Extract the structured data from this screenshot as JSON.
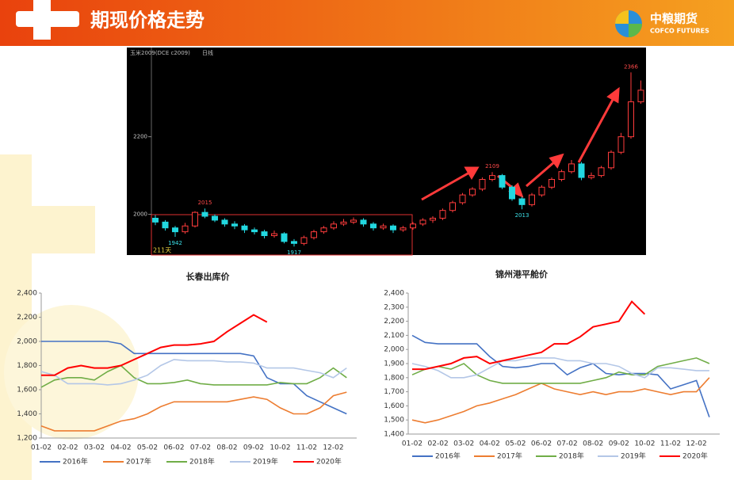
{
  "header": {
    "title": "期现价格走势",
    "logo_cn": "中粮期货",
    "logo_en": "COFCO FUTURES"
  },
  "chart_data": [
    {
      "type": "candlestick",
      "title": "玉米2009(DCE c2009)",
      "subtitle": "日线",
      "annotation": "211天",
      "up_color": "#ff3c3c",
      "down_color": "#22d8e0",
      "ylim": [
        1895,
        2430
      ],
      "yticks": [
        2000,
        2200
      ],
      "high_labels": [
        2015,
        2109,
        2366
      ],
      "low_labels": [
        1942,
        1917,
        2013
      ],
      "candles": [
        [
          1990,
          1998,
          1972,
          1980
        ],
        [
          1980,
          1985,
          1958,
          1965
        ],
        [
          1965,
          1970,
          1942,
          1955
        ],
        [
          1955,
          1978,
          1950,
          1970
        ],
        [
          1970,
          2008,
          1966,
          2005
        ],
        [
          2005,
          2015,
          1990,
          1995
        ],
        [
          1995,
          2000,
          1980,
          1985
        ],
        [
          1985,
          1990,
          1968,
          1975
        ],
        [
          1975,
          1982,
          1962,
          1970
        ],
        [
          1970,
          1975,
          1952,
          1960
        ],
        [
          1960,
          1966,
          1948,
          1955
        ],
        [
          1955,
          1960,
          1938,
          1945
        ],
        [
          1945,
          1958,
          1940,
          1950
        ],
        [
          1950,
          1954,
          1925,
          1930
        ],
        [
          1930,
          1936,
          1917,
          1925
        ],
        [
          1925,
          1945,
          1920,
          1940
        ],
        [
          1940,
          1960,
          1935,
          1955
        ],
        [
          1955,
          1970,
          1950,
          1965
        ],
        [
          1965,
          1982,
          1960,
          1975
        ],
        [
          1975,
          1988,
          1970,
          1980
        ],
        [
          1980,
          1992,
          1975,
          1985
        ],
        [
          1985,
          1990,
          1968,
          1975
        ],
        [
          1975,
          1980,
          1958,
          1965
        ],
        [
          1965,
          1976,
          1960,
          1970
        ],
        [
          1970,
          1974,
          1952,
          1960
        ],
        [
          1960,
          1970,
          1955,
          1965
        ],
        [
          1965,
          1980,
          1960,
          1975
        ],
        [
          1975,
          1990,
          1970,
          1985
        ],
        [
          1985,
          1995,
          1978,
          1990
        ],
        [
          1990,
          2015,
          1985,
          2010
        ],
        [
          2010,
          2035,
          2005,
          2030
        ],
        [
          2030,
          2055,
          2025,
          2050
        ],
        [
          2050,
          2070,
          2045,
          2065
        ],
        [
          2065,
          2095,
          2060,
          2090
        ],
        [
          2090,
          2109,
          2085,
          2100
        ],
        [
          2100,
          2104,
          2065,
          2070
        ],
        [
          2070,
          2075,
          2035,
          2040
        ],
        [
          2040,
          2045,
          2013,
          2025
        ],
        [
          2025,
          2055,
          2020,
          2050
        ],
        [
          2050,
          2075,
          2045,
          2070
        ],
        [
          2070,
          2095,
          2065,
          2090
        ],
        [
          2090,
          2115,
          2085,
          2110
        ],
        [
          2110,
          2140,
          2105,
          2130
        ],
        [
          2130,
          2135,
          2088,
          2095
        ],
        [
          2095,
          2108,
          2090,
          2100
        ],
        [
          2100,
          2125,
          2095,
          2120
        ],
        [
          2120,
          2165,
          2115,
          2160
        ],
        [
          2160,
          2210,
          2155,
          2200
        ],
        [
          2200,
          2366,
          2195,
          2290
        ],
        [
          2290,
          2345,
          2285,
          2320
        ]
      ]
    },
    {
      "type": "line",
      "title": "长春出库价",
      "legend": "bottom",
      "categories": [
        "01-02",
        null,
        "02-02",
        null,
        "03-02",
        null,
        "04-02",
        null,
        "05-02",
        null,
        "06-02",
        null,
        "07-02",
        null,
        "08-02",
        null,
        "09-02",
        null,
        "10-02",
        null,
        "11-02",
        null,
        "12-02",
        null
      ],
      "ylim": [
        1200,
        2400
      ],
      "yticks": [
        {
          "value": 1200,
          "label": "1,200"
        },
        {
          "value": 1400,
          "label": "1,400"
        },
        {
          "value": 1600,
          "label": "1,600"
        },
        {
          "value": 1800,
          "label": "1,800"
        },
        {
          "value": 2000,
          "label": "2,000"
        },
        {
          "value": 2200,
          "label": "2,200"
        },
        {
          "value": 2400,
          "label": "2,400"
        }
      ],
      "series": [
        {
          "name": "2016年",
          "color": "#4472c4",
          "values": [
            2000,
            2000,
            2000,
            2000,
            2000,
            2000,
            1980,
            1900,
            1900,
            1900,
            1900,
            1900,
            1900,
            1900,
            1900,
            1900,
            1880,
            1700,
            1650,
            1650,
            1550,
            1500,
            1450,
            1400
          ]
        },
        {
          "name": "2017年",
          "color": "#ed7d31",
          "values": [
            1300,
            1260,
            1260,
            1260,
            1260,
            1300,
            1340,
            1360,
            1400,
            1460,
            1500,
            1500,
            1500,
            1500,
            1500,
            1520,
            1540,
            1520,
            1450,
            1400,
            1400,
            1450,
            1550,
            1580
          ]
        },
        {
          "name": "2018年",
          "color": "#70ad47",
          "values": [
            1620,
            1680,
            1700,
            1700,
            1680,
            1750,
            1800,
            1700,
            1650,
            1650,
            1660,
            1680,
            1650,
            1640,
            1640,
            1640,
            1640,
            1640,
            1660,
            1650,
            1650,
            1700,
            1780,
            1700
          ]
        },
        {
          "name": "2019年",
          "color": "#b4c7e7",
          "values": [
            1750,
            1720,
            1650,
            1650,
            1650,
            1640,
            1650,
            1680,
            1720,
            1800,
            1850,
            1840,
            1840,
            1840,
            1830,
            1830,
            1820,
            1780,
            1780,
            1780,
            1760,
            1740,
            1700,
            1780
          ]
        },
        {
          "name": "2020年",
          "color": "#ff0000",
          "values": [
            1720,
            1720,
            1780,
            1800,
            1780,
            1780,
            1800,
            1850,
            1900,
            1950,
            1970,
            1970,
            1980,
            2000,
            2080,
            2150,
            2220,
            2160,
            null,
            null,
            null,
            null,
            null,
            null
          ]
        }
      ]
    },
    {
      "type": "line",
      "title": "锦州港平舱价",
      "legend": "bottom",
      "categories": [
        "01-02",
        null,
        "02-02",
        null,
        "03-02",
        null,
        "04-02",
        null,
        "05-02",
        null,
        "06-02",
        null,
        "07-02",
        null,
        "08-02",
        null,
        "09-02",
        null,
        "10-02",
        null,
        "11-02",
        null,
        "12-02",
        null
      ],
      "ylim": [
        1400,
        2400
      ],
      "yticks": [
        {
          "value": 1400,
          "label": "1,400"
        },
        {
          "value": 1500,
          "label": "1,500"
        },
        {
          "value": 1600,
          "label": "1,600"
        },
        {
          "value": 1700,
          "label": "1,700"
        },
        {
          "value": 1800,
          "label": "1,800"
        },
        {
          "value": 1900,
          "label": "1,900"
        },
        {
          "value": 2000,
          "label": "2,000"
        },
        {
          "value": 2100,
          "label": "2,100"
        },
        {
          "value": 2200,
          "label": "2,200"
        },
        {
          "value": 2300,
          "label": "2,300"
        },
        {
          "value": 2400,
          "label": "2,400"
        }
      ],
      "series": [
        {
          "name": "2016年",
          "color": "#4472c4",
          "values": [
            2100,
            2050,
            2040,
            2040,
            2040,
            2040,
            1950,
            1880,
            1870,
            1880,
            1900,
            1900,
            1820,
            1870,
            1900,
            1830,
            1820,
            1830,
            1830,
            1820,
            1720,
            1750,
            1780,
            1520
          ]
        },
        {
          "name": "2017年",
          "color": "#ed7d31",
          "values": [
            1500,
            1480,
            1500,
            1530,
            1560,
            1600,
            1620,
            1650,
            1680,
            1720,
            1760,
            1720,
            1700,
            1680,
            1700,
            1680,
            1700,
            1700,
            1720,
            1700,
            1680,
            1700,
            1700,
            1800
          ]
        },
        {
          "name": "2018年",
          "color": "#70ad47",
          "values": [
            1820,
            1860,
            1880,
            1860,
            1900,
            1820,
            1780,
            1760,
            1760,
            1760,
            1760,
            1760,
            1760,
            1760,
            1780,
            1800,
            1840,
            1820,
            1820,
            1880,
            1900,
            1920,
            1940,
            1900
          ]
        },
        {
          "name": "2019年",
          "color": "#b4c7e7",
          "values": [
            1900,
            1880,
            1850,
            1800,
            1800,
            1820,
            1870,
            1920,
            1920,
            1940,
            1940,
            1940,
            1920,
            1920,
            1900,
            1900,
            1880,
            1830,
            1800,
            1870,
            1870,
            1860,
            1850,
            1850
          ]
        },
        {
          "name": "2020年",
          "color": "#ff0000",
          "values": [
            1860,
            1860,
            1880,
            1900,
            1940,
            1950,
            1900,
            1920,
            1940,
            1960,
            1980,
            2040,
            2040,
            2090,
            2160,
            2180,
            2200,
            2340,
            2250,
            null,
            null,
            null,
            null,
            null
          ]
        }
      ]
    }
  ]
}
